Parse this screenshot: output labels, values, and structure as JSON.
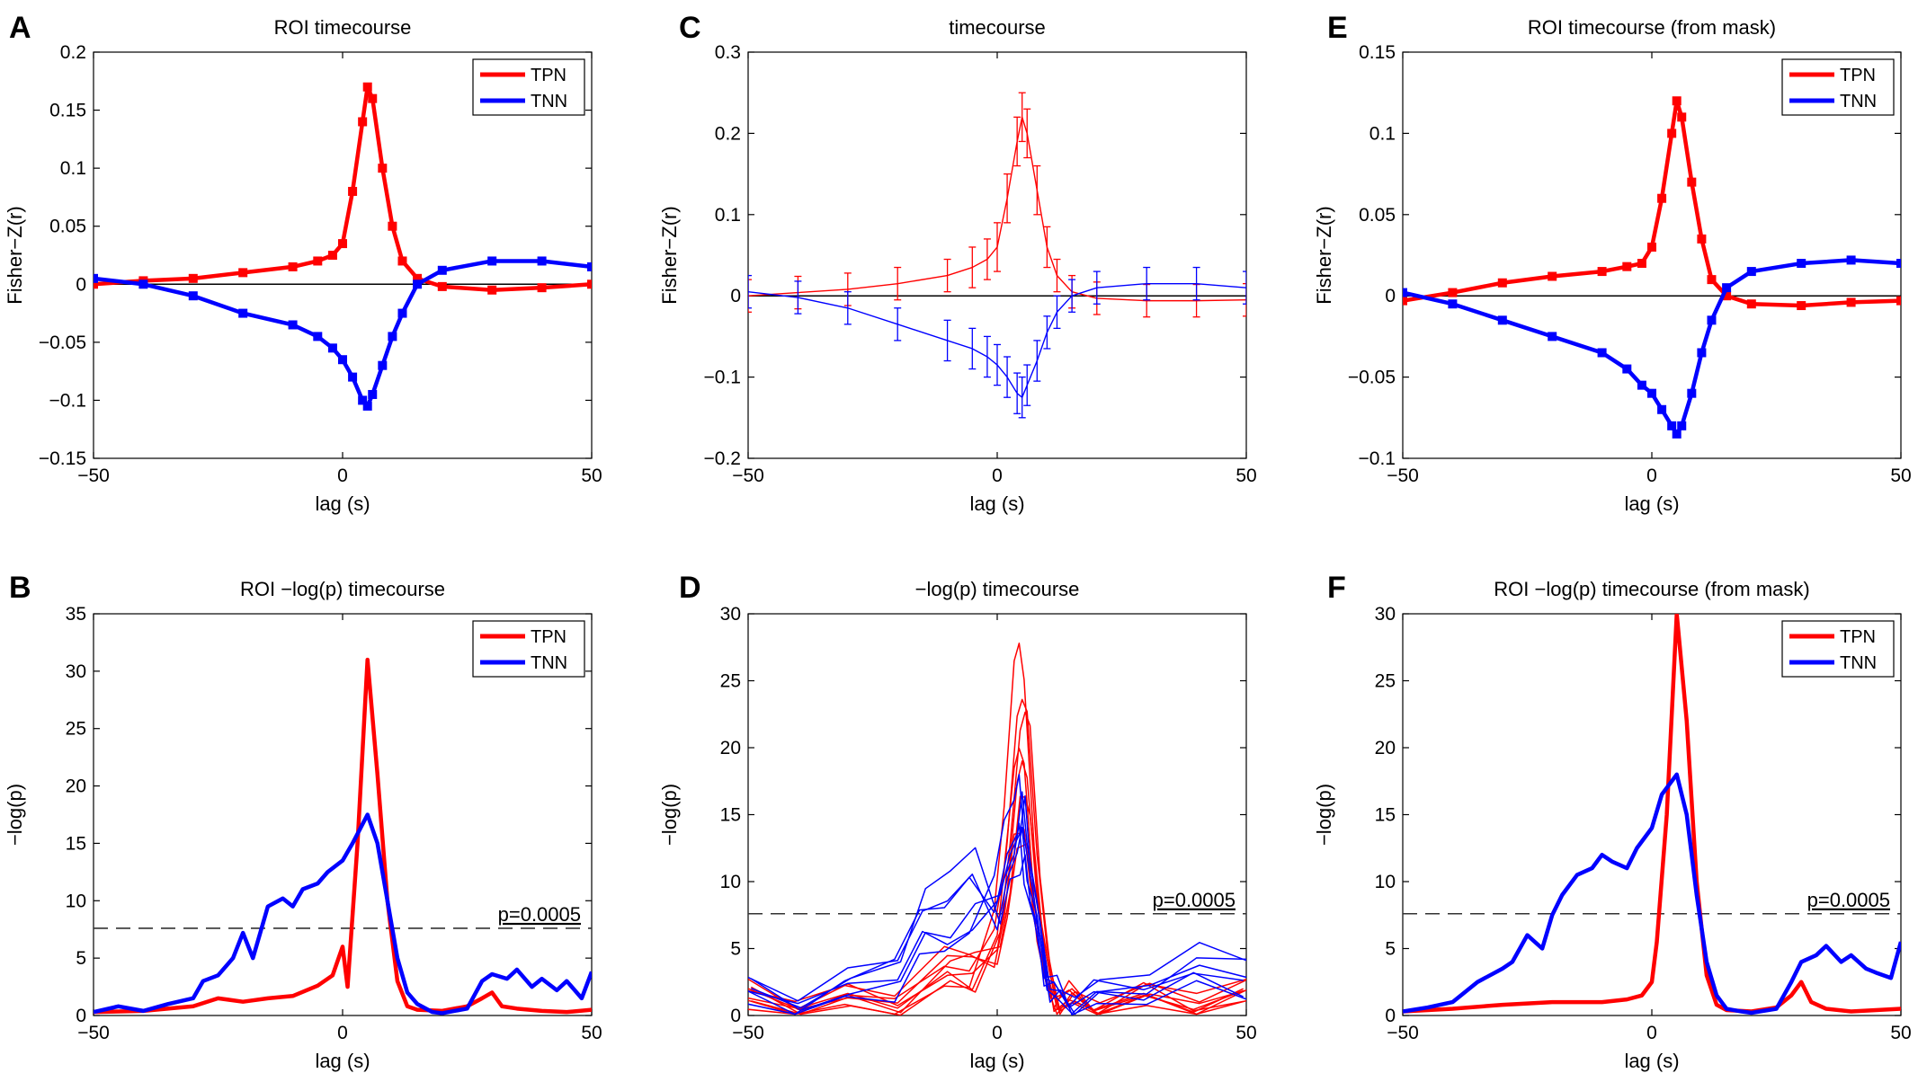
{
  "panels": [
    {
      "letter": "A",
      "title": "ROI timecourse",
      "xlabel": "lag (s)",
      "ylabel": "Fisher−Z(r)",
      "xlim": [
        -50,
        50
      ],
      "ylim": [
        -0.15,
        0.2
      ],
      "xticks": [
        -50,
        0,
        50
      ],
      "xticklabels": [
        "−50",
        "0",
        "50"
      ],
      "yticks": [
        -0.15,
        -0.1,
        -0.05,
        0,
        0.05,
        0.1,
        0.15,
        0.2
      ],
      "yticklabels": [
        "−0.15",
        "−0.1",
        "−0.05",
        "0",
        "0.05",
        "0.1",
        "0.15",
        "0.2"
      ],
      "legend": [
        "TPN",
        "TNN"
      ],
      "zero_line": true
    },
    {
      "letter": "B",
      "title": "ROI −log(p) timecourse",
      "xlabel": "lag (s)",
      "ylabel": "−log(p)",
      "xlim": [
        -50,
        50
      ],
      "ylim": [
        0,
        35
      ],
      "xticks": [
        -50,
        0,
        50
      ],
      "xticklabels": [
        "−50",
        "0",
        "50"
      ],
      "yticks": [
        0,
        5,
        10,
        15,
        20,
        25,
        30,
        35
      ],
      "yticklabels": [
        "0",
        "5",
        "10",
        "15",
        "20",
        "25",
        "30",
        "35"
      ],
      "legend": [
        "TPN",
        "TNN"
      ],
      "threshold": 7.6,
      "threshold_label": "p=0.0005"
    },
    {
      "letter": "C",
      "title": "timecourse",
      "xlabel": "lag (s)",
      "ylabel": "Fisher−Z(r)",
      "xlim": [
        -50,
        50
      ],
      "ylim": [
        -0.2,
        0.3
      ],
      "xticks": [
        -50,
        0,
        50
      ],
      "xticklabels": [
        "−50",
        "0",
        "50"
      ],
      "yticks": [
        -0.2,
        -0.1,
        0,
        0.1,
        0.2,
        0.3
      ],
      "yticklabels": [
        "−0.2",
        "−0.1",
        "0",
        "0.1",
        "0.2",
        "0.3"
      ],
      "zero_line": true
    },
    {
      "letter": "D",
      "title": "−log(p) timecourse",
      "xlabel": "lag (s)",
      "ylabel": "−log(p)",
      "xlim": [
        -50,
        50
      ],
      "ylim": [
        0,
        30
      ],
      "xticks": [
        -50,
        0,
        50
      ],
      "xticklabels": [
        "−50",
        "0",
        "50"
      ],
      "yticks": [
        0,
        5,
        10,
        15,
        20,
        25,
        30
      ],
      "yticklabels": [
        "0",
        "5",
        "10",
        "15",
        "20",
        "25",
        "30"
      ],
      "threshold": 7.6,
      "threshold_label": "p=0.0005"
    },
    {
      "letter": "E",
      "title": "ROI timecourse (from mask)",
      "xlabel": "lag (s)",
      "ylabel": "Fisher−Z(r)",
      "xlim": [
        -50,
        50
      ],
      "ylim": [
        -0.1,
        0.15
      ],
      "xticks": [
        -50,
        0,
        50
      ],
      "xticklabels": [
        "−50",
        "0",
        "50"
      ],
      "yticks": [
        -0.1,
        -0.05,
        0,
        0.05,
        0.1,
        0.15
      ],
      "yticklabels": [
        "−0.1",
        "−0.05",
        "0",
        "0.05",
        "0.1",
        "0.15"
      ],
      "legend": [
        "TPN",
        "TNN"
      ],
      "zero_line": true
    },
    {
      "letter": "F",
      "title": "ROI −log(p) timecourse (from mask)",
      "xlabel": "lag (s)",
      "ylabel": "−log(p)",
      "xlim": [
        -50,
        50
      ],
      "ylim": [
        0,
        30
      ],
      "xticks": [
        -50,
        0,
        50
      ],
      "xticklabels": [
        "−50",
        "0",
        "50"
      ],
      "yticks": [
        0,
        5,
        10,
        15,
        20,
        25,
        30
      ],
      "yticklabels": [
        "0",
        "5",
        "10",
        "15",
        "20",
        "25",
        "30"
      ],
      "legend": [
        "TPN",
        "TNN"
      ],
      "threshold": 7.6,
      "threshold_label": "p=0.0005"
    }
  ],
  "colors": {
    "tpn": "#ff0000",
    "tnn": "#0000ff",
    "zero": "#000000",
    "threshold": "#333333"
  },
  "chart_data": [
    {
      "panel": "A",
      "type": "line",
      "title": "ROI timecourse",
      "xlabel": "lag (s)",
      "ylabel": "Fisher−Z(r)",
      "xlim": [
        -50,
        50
      ],
      "ylim": [
        -0.15,
        0.2
      ],
      "legend_position": "top-right",
      "markers": "square",
      "series": [
        {
          "name": "TPN",
          "color": "#ff0000",
          "x": [
            -50,
            -40,
            -30,
            -20,
            -10,
            -5,
            -2,
            0,
            2,
            4,
            5,
            6,
            8,
            10,
            12,
            15,
            20,
            30,
            40,
            50
          ],
          "y": [
            0.0,
            0.003,
            0.005,
            0.01,
            0.015,
            0.02,
            0.025,
            0.035,
            0.08,
            0.14,
            0.17,
            0.16,
            0.1,
            0.05,
            0.02,
            0.005,
            -0.002,
            -0.005,
            -0.003,
            0.0
          ]
        },
        {
          "name": "TNN",
          "color": "#0000ff",
          "x": [
            -50,
            -40,
            -30,
            -20,
            -10,
            -5,
            -2,
            0,
            2,
            4,
            5,
            6,
            8,
            10,
            12,
            15,
            20,
            30,
            40,
            50
          ],
          "y": [
            0.005,
            0.0,
            -0.01,
            -0.025,
            -0.035,
            -0.045,
            -0.055,
            -0.065,
            -0.08,
            -0.1,
            -0.105,
            -0.095,
            -0.07,
            -0.045,
            -0.025,
            0.0,
            0.012,
            0.02,
            0.02,
            0.015
          ]
        }
      ]
    },
    {
      "panel": "B",
      "type": "line",
      "title": "ROI −log(p) timecourse",
      "xlabel": "lag (s)",
      "ylabel": "−log(p)",
      "xlim": [
        -50,
        50
      ],
      "ylim": [
        0,
        35
      ],
      "legend_position": "top-right",
      "threshold": {
        "y": 7.6,
        "label": "p=0.0005"
      },
      "series": [
        {
          "name": "TPN",
          "color": "#ff0000",
          "x": [
            -50,
            -40,
            -30,
            -25,
            -20,
            -15,
            -10,
            -5,
            -2,
            0,
            1,
            3,
            5,
            7,
            9,
            11,
            13,
            15,
            20,
            25,
            28,
            30,
            32,
            35,
            40,
            45,
            50
          ],
          "y": [
            0.3,
            0.4,
            0.8,
            1.5,
            1.2,
            1.5,
            1.7,
            2.6,
            3.5,
            6.0,
            2.5,
            15,
            31,
            21,
            10,
            3,
            0.8,
            0.5,
            0.4,
            0.8,
            1.5,
            2.0,
            0.8,
            0.6,
            0.4,
            0.3,
            0.5
          ]
        },
        {
          "name": "TNN",
          "color": "#0000ff",
          "x": [
            -50,
            -45,
            -40,
            -35,
            -30,
            -28,
            -25,
            -22,
            -20,
            -18,
            -15,
            -12,
            -10,
            -8,
            -5,
            -3,
            0,
            2,
            5,
            7,
            9,
            11,
            13,
            15,
            18,
            20,
            25,
            28,
            30,
            33,
            35,
            38,
            40,
            43,
            45,
            48,
            50
          ],
          "y": [
            0.3,
            0.8,
            0.4,
            1.0,
            1.5,
            3.0,
            3.5,
            5.0,
            7.2,
            5.0,
            9.5,
            10.2,
            9.5,
            11.0,
            11.5,
            12.5,
            13.5,
            15.0,
            17.5,
            15.0,
            10.0,
            5.0,
            2.0,
            1.0,
            0.3,
            0.2,
            0.6,
            3.0,
            3.6,
            3.2,
            4.0,
            2.5,
            3.2,
            2.2,
            3.0,
            1.5,
            3.8
          ]
        }
      ]
    },
    {
      "panel": "C",
      "type": "line",
      "title": "timecourse",
      "xlabel": "lag (s)",
      "ylabel": "Fisher−Z(r)",
      "xlim": [
        -50,
        50
      ],
      "ylim": [
        -0.2,
        0.3
      ],
      "error_bars": true,
      "series": [
        {
          "name": "TPN",
          "color": "#ff0000",
          "x": [
            -50,
            -40,
            -30,
            -20,
            -10,
            -5,
            -2,
            0,
            2,
            4,
            5,
            6,
            8,
            10,
            12,
            15,
            20,
            30,
            40,
            50
          ],
          "y": [
            0.0,
            0.004,
            0.008,
            0.015,
            0.025,
            0.035,
            0.045,
            0.06,
            0.12,
            0.19,
            0.22,
            0.2,
            0.13,
            0.06,
            0.025,
            0.005,
            -0.003,
            -0.006,
            -0.006,
            -0.005
          ],
          "err": [
            0.02,
            0.02,
            0.02,
            0.02,
            0.02,
            0.025,
            0.025,
            0.03,
            0.03,
            0.03,
            0.03,
            0.03,
            0.03,
            0.025,
            0.02,
            0.02,
            0.02,
            0.02,
            0.02,
            0.02
          ]
        },
        {
          "name": "TNN",
          "color": "#0000ff",
          "x": [
            -50,
            -40,
            -30,
            -20,
            -10,
            -5,
            -2,
            0,
            2,
            4,
            5,
            6,
            8,
            10,
            12,
            15,
            20,
            30,
            40,
            50
          ],
          "y": [
            0.005,
            -0.002,
            -0.015,
            -0.035,
            -0.055,
            -0.065,
            -0.075,
            -0.085,
            -0.1,
            -0.12,
            -0.125,
            -0.11,
            -0.08,
            -0.045,
            -0.02,
            0.0,
            0.01,
            0.015,
            0.015,
            0.01
          ],
          "err": [
            0.02,
            0.02,
            0.02,
            0.02,
            0.025,
            0.025,
            0.025,
            0.025,
            0.025,
            0.025,
            0.025,
            0.025,
            0.025,
            0.02,
            0.02,
            0.02,
            0.02,
            0.02,
            0.02,
            0.02
          ]
        }
      ]
    },
    {
      "panel": "D",
      "type": "line",
      "title": "−log(p) timecourse",
      "xlabel": "lag (s)",
      "ylabel": "−log(p)",
      "xlim": [
        -50,
        50
      ],
      "ylim": [
        0,
        30
      ],
      "threshold": {
        "y": 7.6,
        "label": "p=0.0005"
      },
      "note": "multiple overlaid curves per network",
      "series": [
        {
          "name": "TPN",
          "color": "#ff0000",
          "x": [
            -50,
            -40,
            -30,
            -20,
            -10,
            -5,
            0,
            2,
            4,
            5,
            6,
            8,
            10,
            12,
            15,
            20,
            30,
            40,
            50
          ],
          "peaks": [
            28.5,
            25,
            23,
            21,
            19,
            17,
            15,
            13
          ],
          "y": [
            0.8,
            0.7,
            0.8,
            1.2,
            2.5,
            3.5,
            6.0,
            14.0,
            22.0,
            25.0,
            22.0,
            12.0,
            4.0,
            1.5,
            0.8,
            0.7,
            1.0,
            1.0,
            1.0
          ]
        },
        {
          "name": "TNN",
          "color": "#0000ff",
          "x": [
            -50,
            -40,
            -30,
            -20,
            -15,
            -10,
            -5,
            0,
            2,
            4,
            5,
            6,
            8,
            10,
            12,
            15,
            20,
            30,
            40,
            50
          ],
          "peaks": [
            18,
            16,
            15,
            14,
            13,
            12
          ],
          "y": [
            1.5,
            1.2,
            1.8,
            4.0,
            6.5,
            8.0,
            8.5,
            9.0,
            11.0,
            14.0,
            15.0,
            12.0,
            7.0,
            3.0,
            1.5,
            1.0,
            1.2,
            2.5,
            3.0,
            3.5
          ]
        }
      ]
    },
    {
      "panel": "E",
      "type": "line",
      "title": "ROI timecourse (from mask)",
      "xlabel": "lag (s)",
      "ylabel": "Fisher−Z(r)",
      "xlim": [
        -50,
        50
      ],
      "ylim": [
        -0.1,
        0.15
      ],
      "legend_position": "top-right",
      "markers": "square",
      "series": [
        {
          "name": "TPN",
          "color": "#ff0000",
          "x": [
            -50,
            -40,
            -30,
            -20,
            -10,
            -5,
            -2,
            0,
            2,
            4,
            5,
            6,
            8,
            10,
            12,
            15,
            20,
            30,
            40,
            50
          ],
          "y": [
            -0.003,
            0.002,
            0.008,
            0.012,
            0.015,
            0.018,
            0.02,
            0.03,
            0.06,
            0.1,
            0.12,
            0.11,
            0.07,
            0.035,
            0.01,
            0.0,
            -0.005,
            -0.006,
            -0.004,
            -0.003
          ]
        },
        {
          "name": "TNN",
          "color": "#0000ff",
          "x": [
            -50,
            -40,
            -30,
            -20,
            -10,
            -5,
            -2,
            0,
            2,
            4,
            5,
            6,
            8,
            10,
            12,
            15,
            20,
            30,
            40,
            50
          ],
          "y": [
            0.002,
            -0.005,
            -0.015,
            -0.025,
            -0.035,
            -0.045,
            -0.055,
            -0.06,
            -0.07,
            -0.08,
            -0.085,
            -0.08,
            -0.06,
            -0.035,
            -0.015,
            0.005,
            0.015,
            0.02,
            0.022,
            0.02
          ]
        }
      ]
    },
    {
      "panel": "F",
      "type": "line",
      "title": "ROI −log(p) timecourse (from mask)",
      "xlabel": "lag (s)",
      "ylabel": "−log(p)",
      "xlim": [
        -50,
        50
      ],
      "ylim": [
        0,
        30
      ],
      "legend_position": "top-right",
      "threshold": {
        "y": 7.6,
        "label": "p=0.0005"
      },
      "series": [
        {
          "name": "TPN",
          "color": "#ff0000",
          "x": [
            -50,
            -40,
            -30,
            -20,
            -10,
            -5,
            -2,
            0,
            1,
            3,
            5,
            7,
            9,
            11,
            13,
            15,
            20,
            25,
            28,
            30,
            32,
            35,
            40,
            45,
            50
          ],
          "y": [
            0.3,
            0.5,
            0.8,
            1.0,
            1.0,
            1.2,
            1.5,
            2.5,
            5.5,
            15,
            30,
            22,
            10,
            3,
            0.8,
            0.4,
            0.3,
            0.6,
            1.5,
            2.5,
            1.0,
            0.5,
            0.3,
            0.4,
            0.5
          ]
        },
        {
          "name": "TNN",
          "color": "#0000ff",
          "x": [
            -50,
            -45,
            -40,
            -35,
            -30,
            -28,
            -25,
            -22,
            -20,
            -18,
            -15,
            -12,
            -10,
            -8,
            -5,
            -3,
            0,
            2,
            5,
            7,
            9,
            11,
            13,
            15,
            18,
            20,
            25,
            28,
            30,
            33,
            35,
            38,
            40,
            43,
            45,
            48,
            50
          ],
          "y": [
            0.3,
            0.6,
            1.0,
            2.5,
            3.5,
            4.0,
            6.0,
            5.0,
            7.5,
            9.0,
            10.5,
            11.0,
            12.0,
            11.5,
            11.0,
            12.5,
            14.0,
            16.5,
            18.0,
            15.0,
            9.0,
            4.0,
            1.5,
            0.5,
            0.3,
            0.2,
            0.5,
            2.5,
            4.0,
            4.5,
            5.2,
            4.0,
            4.5,
            3.5,
            3.2,
            2.8,
            5.5
          ]
        }
      ]
    }
  ]
}
